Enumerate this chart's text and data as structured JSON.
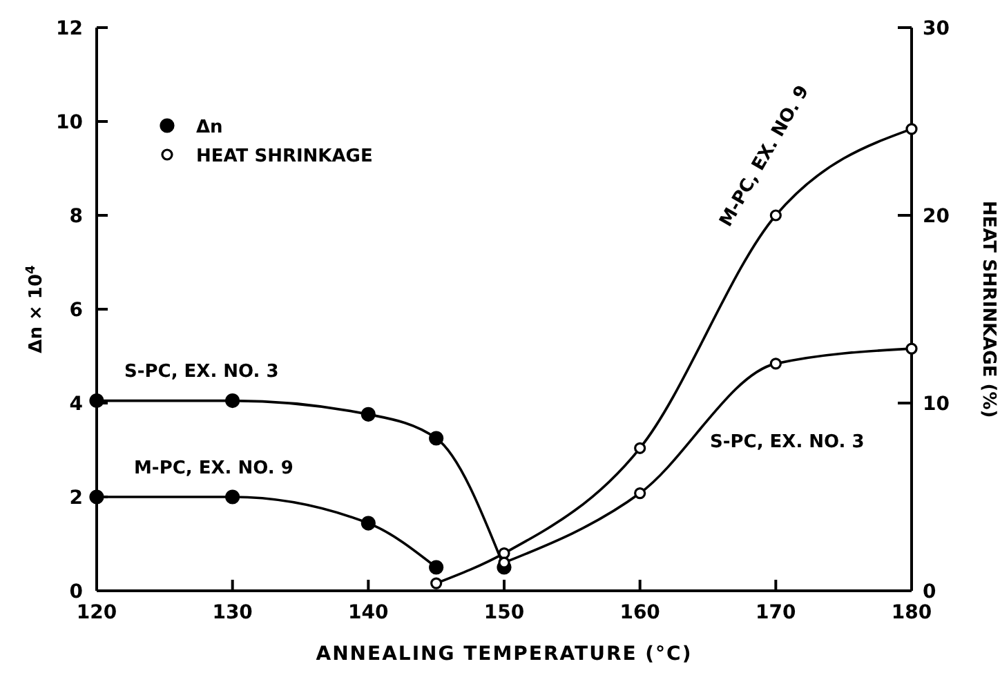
{
  "chart_data": {
    "type": "line",
    "xlabel": "ANNEALING TEMPERATURE (°C)",
    "ylabel": "Δn × 10$^{4}$",
    "y2label": "HEAT SHRINKAGE (%)",
    "xlim": [
      120,
      180
    ],
    "xticks": [
      120,
      130,
      140,
      150,
      160,
      170,
      180
    ],
    "ylim": [
      0,
      12
    ],
    "yticks": [
      0,
      2,
      4,
      6,
      8,
      10,
      12
    ],
    "y2lim": [
      0,
      30
    ],
    "y2ticks": [
      0,
      10,
      20,
      30
    ],
    "grid": false,
    "line_style": "solid",
    "legend": "top left",
    "series": [
      {
        "name": "Δn",
        "color": "#000000",
        "marker": "circle",
        "x": [
          120,
          130,
          140,
          145,
          150
        ],
        "values": [
          4.05,
          4.05,
          3.76,
          3.25,
          0.5
        ]
      },
      {
        "color": "#000000",
        "marker": "circle",
        "x": [
          120,
          130,
          140,
          145
        ],
        "values": [
          2.0,
          2.0,
          1.44,
          0.5
        ]
      },
      {
        "name": "HEAT SHRINKAGE",
        "color": "#000000",
        "marker": "open-circle",
        "axis": "y2",
        "x": [
          145,
          150,
          160,
          170,
          180
        ],
        "values": [
          0.4,
          2.0,
          7.6,
          20,
          24.6
        ]
      },
      {
        "color": "#000000",
        "marker": "open-circle",
        "axis": "y2",
        "x": [
          150,
          160,
          170,
          180
        ],
        "values": [
          1.5,
          5.2,
          12.1,
          12.9
        ]
      }
    ],
    "annotations": [
      "S-PC, EX. NO. 3",
      "M-PC, EX. NO. 9",
      "M-PC, EX. NO. 9",
      "S-PC, EX. NO. 3"
    ]
  }
}
